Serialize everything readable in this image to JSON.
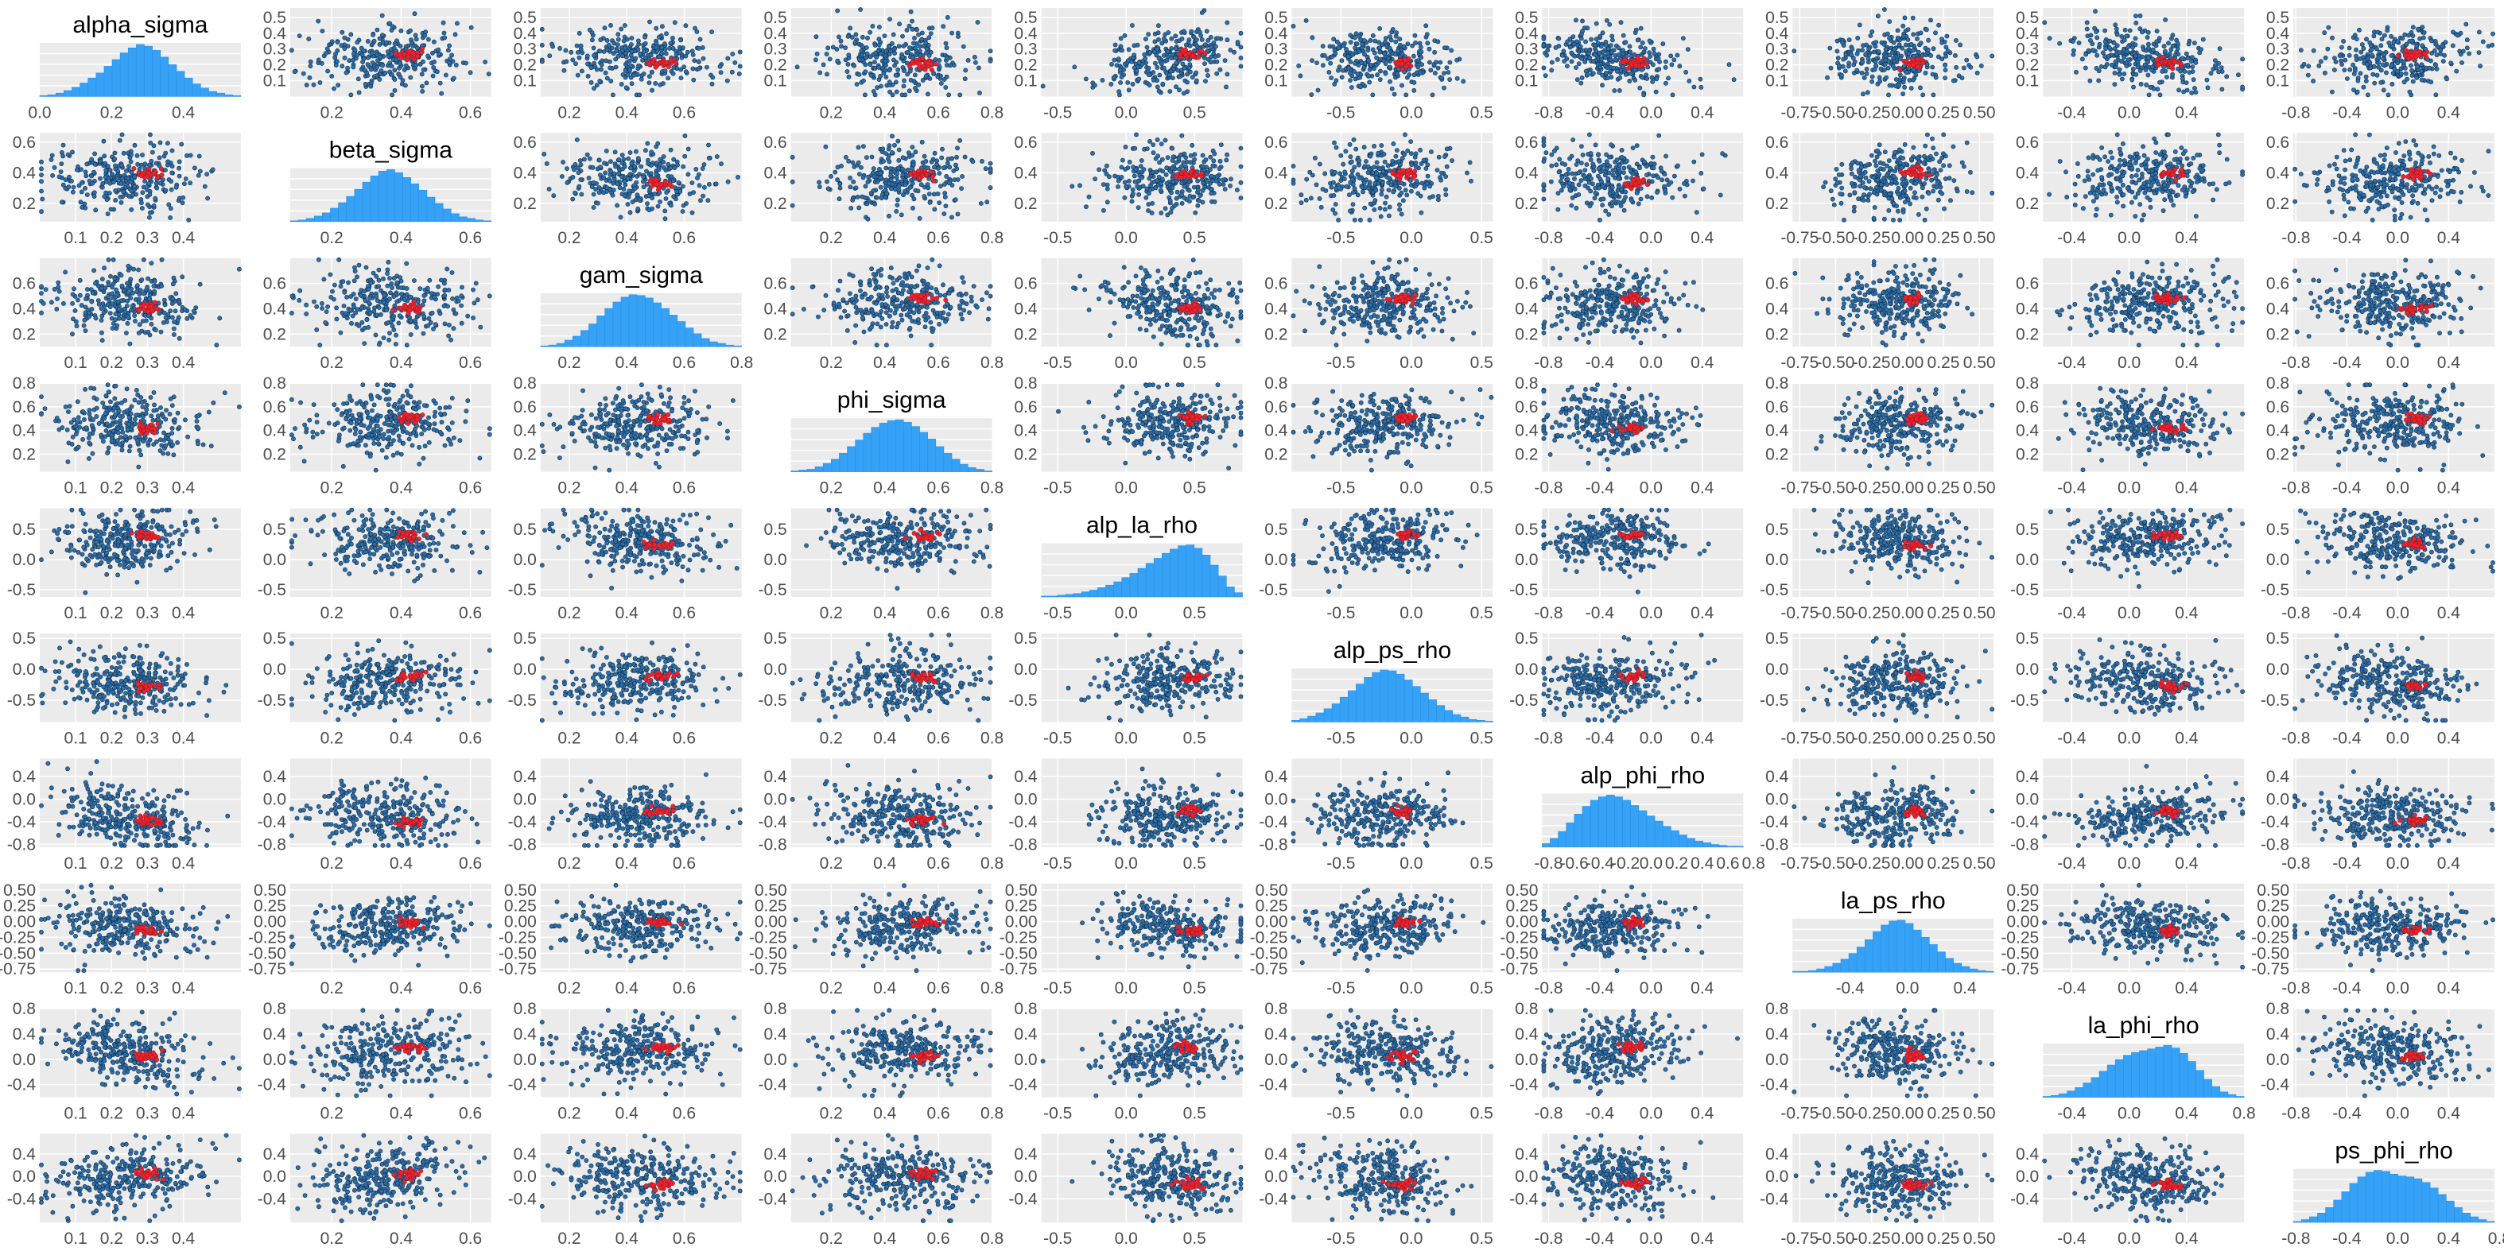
{
  "chart_data": {
    "type": "scatter",
    "title": "",
    "grid": true,
    "layout": "pairs-matrix",
    "diagonal_type": "histogram",
    "colors": {
      "panel_background": "#ebebeb",
      "grid_major": "#ffffff",
      "grid_minor": "#f5f5f5",
      "point_fill": "#2f6fa8",
      "point_edge": "#0d2b47",
      "highlight_point": "#e8242f",
      "histogram_fill": "#35a2f7",
      "histogram_edge": "#2a8ee0",
      "tick_text": "#4d4d4d"
    },
    "variables": [
      {
        "name": "alpha_sigma",
        "range": [
          0.0,
          0.56
        ],
        "ticks": [
          "0.0",
          "0.2",
          "0.4"
        ],
        "row_ticks": [
          "0.1",
          "0.2",
          "0.3",
          "0.4",
          "0.5"
        ],
        "col_ticks": [
          "0.1",
          "0.2",
          "0.3",
          "0.4"
        ],
        "mean": 0.24,
        "sd": 0.1,
        "hist": [
          1,
          2,
          4,
          7,
          11,
          16,
          22,
          28,
          36,
          44,
          52,
          58,
          62,
          60,
          55,
          47,
          38,
          30,
          22,
          15,
          10,
          6,
          4,
          2,
          1
        ]
      },
      {
        "name": "beta_sigma",
        "range": [
          0.08,
          0.66
        ],
        "ticks": [
          "0.2",
          "0.4",
          "0.6"
        ],
        "row_ticks": [
          "0.2",
          "0.4",
          "0.6"
        ],
        "col_ticks": [
          "0.2",
          "0.4",
          "0.6"
        ],
        "mean": 0.36,
        "sd": 0.11,
        "hist": [
          1,
          2,
          4,
          7,
          11,
          17,
          24,
          32,
          41,
          50,
          58,
          64,
          66,
          62,
          56,
          48,
          40,
          31,
          23,
          16,
          10,
          6,
          4,
          2,
          1
        ]
      },
      {
        "name": "gam_sigma",
        "range": [
          0.1,
          0.8
        ],
        "ticks": [
          "0.2",
          "0.4",
          "0.6",
          "0.8"
        ],
        "row_ticks": [
          "0.2",
          "0.4",
          "0.6"
        ],
        "col_ticks": [
          "0.2",
          "0.4",
          "0.6"
        ],
        "mean": 0.44,
        "sd": 0.13,
        "hist": [
          1,
          2,
          4,
          8,
          13,
          20,
          28,
          38,
          47,
          55,
          61,
          64,
          63,
          60,
          54,
          47,
          39,
          31,
          23,
          16,
          10,
          6,
          4,
          2,
          1
        ]
      },
      {
        "name": "phi_sigma",
        "range": [
          0.05,
          0.8
        ],
        "ticks": [
          "0.2",
          "0.4",
          "0.6",
          "0.8"
        ],
        "row_ticks": [
          "0.2",
          "0.4",
          "0.6",
          "0.8"
        ],
        "col_ticks": [
          "0.2",
          "0.4",
          "0.6",
          "0.8"
        ],
        "mean": 0.46,
        "sd": 0.14,
        "hist": [
          1,
          2,
          3,
          6,
          10,
          15,
          22,
          30,
          38,
          46,
          53,
          58,
          61,
          62,
          59,
          54,
          47,
          39,
          30,
          22,
          15,
          9,
          5,
          3,
          1
        ]
      },
      {
        "name": "alp_la_rho",
        "range": [
          -0.62,
          0.85
        ],
        "ticks": [
          "-0.5",
          "0.0",
          "0.5"
        ],
        "row_ticks": [
          "-0.5",
          "0.0",
          "0.5"
        ],
        "col_ticks": [
          "-0.5",
          "0.0",
          "0.5"
        ],
        "mean": 0.32,
        "sd": 0.25,
        "hist": [
          1,
          1,
          2,
          3,
          4,
          6,
          8,
          11,
          14,
          18,
          23,
          28,
          34,
          40,
          46,
          52,
          57,
          61,
          62,
          58,
          50,
          38,
          25,
          12,
          5
        ]
      },
      {
        "name": "alp_ps_rho",
        "range": [
          -0.85,
          0.58
        ],
        "ticks": [
          "-0.5",
          "0.0",
          "0.5"
        ],
        "row_ticks": [
          "-0.5",
          "0.0",
          "0.5"
        ],
        "col_ticks": [
          "-0.5",
          "0.0",
          "0.5"
        ],
        "mean": -0.2,
        "sd": 0.25,
        "hist": [
          2,
          4,
          7,
          11,
          16,
          22,
          30,
          38,
          46,
          54,
          60,
          63,
          62,
          58,
          51,
          43,
          35,
          27,
          20,
          14,
          9,
          6,
          3,
          2,
          1
        ]
      },
      {
        "name": "alp_phi_rho",
        "range": [
          -0.85,
          0.72
        ],
        "ticks": [
          "-0.8",
          "-0.6",
          "-0.4",
          "-0.2",
          "0.0",
          "0.2",
          "0.4",
          "0.6",
          "0.8"
        ],
        "row_ticks": [
          "-0.8",
          "-0.4",
          "0.0",
          "0.4"
        ],
        "col_ticks": [
          "-0.8",
          "-0.4",
          "0.0",
          "0.4"
        ],
        "mean": -0.3,
        "sd": 0.27,
        "hist": [
          4,
          10,
          18,
          28,
          38,
          47,
          54,
          58,
          60,
          58,
          54,
          48,
          42,
          36,
          30,
          24,
          19,
          14,
          10,
          7,
          5,
          3,
          2,
          1,
          1
        ]
      },
      {
        "name": "la_ps_rho",
        "range": [
          -0.8,
          0.6
        ],
        "ticks": [
          "-0.4",
          "0.0",
          "0.4"
        ],
        "row_ticks": [
          "-0.75",
          "-0.50",
          "-0.25",
          "0.00",
          "0.25",
          "0.50"
        ],
        "col_ticks": [
          "-0.75",
          "-0.50",
          "-0.25",
          "0.00",
          "0.25",
          "0.50"
        ],
        "mean": -0.08,
        "sd": 0.22,
        "hist": [
          1,
          1,
          2,
          4,
          7,
          11,
          16,
          23,
          31,
          40,
          50,
          58,
          63,
          64,
          60,
          52,
          43,
          34,
          25,
          17,
          11,
          7,
          4,
          2,
          1
        ]
      },
      {
        "name": "la_phi_rho",
        "range": [
          -0.6,
          0.8
        ],
        "ticks": [
          "-0.4",
          "0.0",
          "0.4",
          "0.8"
        ],
        "row_ticks": [
          "-0.4",
          "0.0",
          "0.4",
          "0.8"
        ],
        "col_ticks": [
          "-0.4",
          "0.0",
          "0.4"
        ],
        "mean": 0.12,
        "sd": 0.26,
        "hist": [
          1,
          2,
          4,
          7,
          11,
          16,
          22,
          29,
          36,
          42,
          47,
          50,
          52,
          54,
          56,
          58,
          55,
          49,
          40,
          30,
          20,
          12,
          6,
          3,
          1
        ]
      },
      {
        "name": "ps_phi_rho",
        "range": [
          -0.82,
          0.76
        ],
        "ticks": [
          "-0.8",
          "-0.4",
          "0.0",
          "0.4",
          "0.8"
        ],
        "row_ticks": [
          "-0.4",
          "0.0",
          "0.4"
        ],
        "col_ticks": [
          "-0.8",
          "-0.4",
          "0.0",
          "0.4",
          "0.8"
        ],
        "mean": -0.05,
        "sd": 0.3,
        "hist": [
          1,
          3,
          6,
          10,
          16,
          24,
          33,
          42,
          49,
          54,
          56,
          55,
          52,
          50,
          49,
          47,
          43,
          37,
          30,
          23,
          16,
          10,
          6,
          3,
          1
        ]
      }
    ],
    "correlations": [
      [
        1.0,
        0.0,
        -0.05,
        -0.02,
        0.22,
        -0.12,
        -0.38,
        -0.05,
        -0.32,
        0.18
      ],
      [
        0.0,
        1.0,
        -0.05,
        0.02,
        0.05,
        0.08,
        -0.12,
        0.18,
        0.08,
        0.1
      ],
      [
        -0.05,
        -0.05,
        1.0,
        0.05,
        -0.25,
        0.1,
        0.02,
        0.05,
        0.05,
        -0.05
      ],
      [
        -0.02,
        0.02,
        0.05,
        1.0,
        0.05,
        0.08,
        -0.05,
        0.15,
        -0.05,
        0.05
      ],
      [
        0.22,
        0.05,
        -0.25,
        0.05,
        1.0,
        0.15,
        0.05,
        -0.15,
        0.15,
        -0.12
      ],
      [
        -0.12,
        0.08,
        0.1,
        0.08,
        0.15,
        1.0,
        0.08,
        0.1,
        -0.05,
        -0.3
      ],
      [
        -0.38,
        -0.12,
        0.02,
        -0.05,
        0.05,
        0.08,
        1.0,
        0.1,
        0.22,
        -0.05
      ],
      [
        -0.05,
        0.18,
        0.05,
        0.15,
        -0.15,
        0.1,
        0.1,
        1.0,
        -0.05,
        -0.05
      ],
      [
        -0.32,
        0.08,
        0.05,
        -0.05,
        0.15,
        -0.05,
        0.22,
        -0.05,
        1.0,
        -0.15
      ],
      [
        0.18,
        0.1,
        -0.05,
        0.05,
        -0.12,
        -0.3,
        -0.05,
        -0.05,
        -0.15,
        1.0
      ]
    ],
    "points_per_panel": 300,
    "highlighted_points_per_panel": 25
  }
}
